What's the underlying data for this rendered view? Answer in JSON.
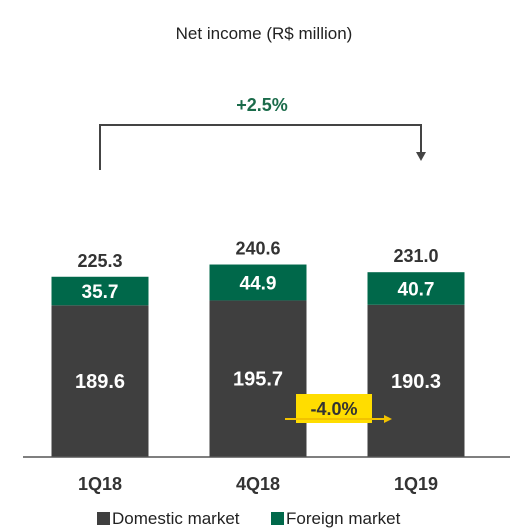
{
  "chart_data": {
    "type": "bar",
    "stacked": true,
    "title": "Net income (R$ million)",
    "categories": [
      "1Q18",
      "4Q18",
      "1Q19"
    ],
    "series": [
      {
        "name": "Domestic market",
        "values": [
          189.6,
          195.7,
          190.3
        ],
        "color": "#3f3f3f"
      },
      {
        "name": "Foreign market",
        "values": [
          35.7,
          44.9,
          40.7
        ],
        "color": "#00684a"
      }
    ],
    "segment_labels": [
      [
        "189.6",
        "195.7",
        "190.3"
      ],
      [
        "35.7",
        "44.9",
        "40.7"
      ]
    ],
    "totals": [
      "225.3",
      "240.6",
      "231.0"
    ],
    "annotations": {
      "growth_label": "+2.5%",
      "growth_color": "#1a6b4a",
      "decline_label": "-4.0%",
      "badge_color": "#ffdd00"
    },
    "legend_position": "bottom",
    "grid": false,
    "ylim": [
      0,
      320
    ]
  }
}
